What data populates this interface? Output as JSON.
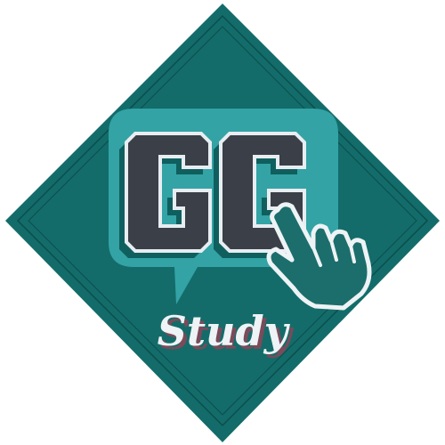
{
  "logo": {
    "monogram": "GG",
    "wordmark": "Study",
    "colors": {
      "background": "#ffffff",
      "diamond_outer": "#2b4f52",
      "diamond": "#136c6a",
      "diamond_line": "#0b4e4d",
      "bubble": "#33a3a5",
      "bubble_border": "#147a78",
      "letter_fill": "#3a3f48",
      "letter_outline": "#e8edf1",
      "letter_shadow": "#0f5f5e",
      "hand_fill": "#1b6e6c",
      "hand_stroke": "#eef3f5",
      "wordmark": "#eef3f5",
      "wordmark_shadow": "#7a4b5a"
    },
    "icons": {
      "pointer": "hand-pointer-icon"
    }
  }
}
